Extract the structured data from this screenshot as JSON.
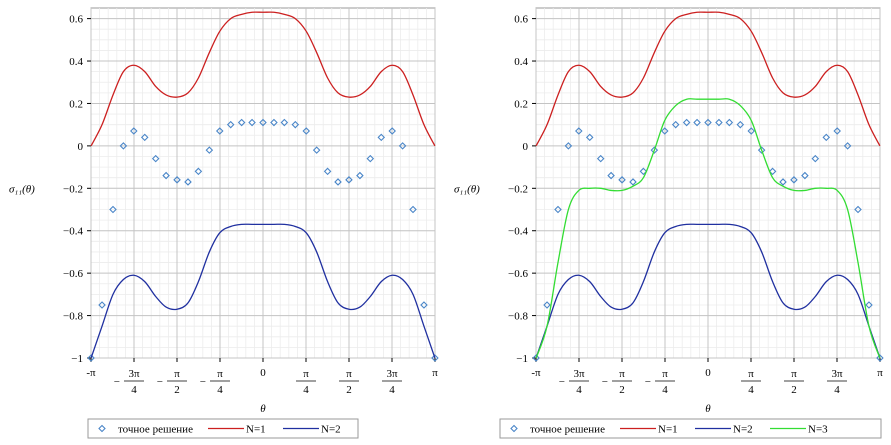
{
  "chart_data": [
    {
      "type": "line",
      "xlabel": "θ",
      "ylabel": "σ₁₁(θ)",
      "xlim": [
        -3.14159,
        3.14159
      ],
      "ylim": [
        -1,
        0.65
      ],
      "grid": true,
      "legend_position": "bottom",
      "x_ticks": [
        "-π",
        "-3π/4",
        "-π/2",
        "-π/4",
        "0",
        "π/4",
        "π/2",
        "3π/4",
        "π"
      ],
      "y_ticks": [
        "0.6",
        "0.4",
        "0.2",
        "0",
        "−0.2",
        "−0.4",
        "−0.6",
        "−0.8",
        "−1"
      ],
      "series": [
        {
          "name": "точное решение",
          "style": "markers",
          "color": "#4a86c8",
          "x": [
            -3.14,
            -2.94,
            -2.74,
            -2.55,
            -2.36,
            -2.16,
            -1.96,
            -1.77,
            -1.57,
            -1.37,
            -1.18,
            -0.98,
            -0.79,
            -0.59,
            -0.39,
            -0.2,
            0,
            0.2,
            0.39,
            0.59,
            0.79,
            0.98,
            1.18,
            1.37,
            1.57,
            1.77,
            1.96,
            2.16,
            2.36,
            2.55,
            2.74,
            2.94,
            3.14
          ],
          "y": [
            -1.0,
            -0.75,
            -0.3,
            0.0,
            0.07,
            0.04,
            -0.06,
            -0.14,
            -0.16,
            -0.17,
            -0.12,
            -0.02,
            0.07,
            0.1,
            0.11,
            0.11,
            0.11,
            0.11,
            0.11,
            0.1,
            0.07,
            -0.02,
            -0.12,
            -0.17,
            -0.16,
            -0.14,
            -0.06,
            0.04,
            0.07,
            0.0,
            -0.3,
            -0.75,
            -1.0
          ]
        },
        {
          "name": "N=1",
          "style": "line",
          "color": "#cc2020",
          "x": [
            -3.14,
            -2.94,
            -2.74,
            -2.55,
            -2.36,
            -2.16,
            -1.96,
            -1.77,
            -1.57,
            -1.37,
            -1.18,
            -0.98,
            -0.79,
            -0.59,
            -0.39,
            -0.2,
            0,
            0.2,
            0.39,
            0.59,
            0.79,
            0.98,
            1.18,
            1.37,
            1.57,
            1.77,
            1.96,
            2.16,
            2.36,
            2.55,
            2.74,
            2.94,
            3.14
          ],
          "y": [
            0.0,
            0.1,
            0.24,
            0.35,
            0.38,
            0.35,
            0.28,
            0.24,
            0.23,
            0.25,
            0.32,
            0.44,
            0.54,
            0.6,
            0.62,
            0.63,
            0.63,
            0.63,
            0.62,
            0.6,
            0.54,
            0.44,
            0.32,
            0.25,
            0.23,
            0.24,
            0.28,
            0.35,
            0.38,
            0.35,
            0.24,
            0.1,
            0.0
          ]
        },
        {
          "name": "N=2",
          "style": "line",
          "color": "#2030a0",
          "x": [
            -3.14,
            -2.94,
            -2.74,
            -2.55,
            -2.36,
            -2.16,
            -1.96,
            -1.77,
            -1.57,
            -1.37,
            -1.18,
            -0.98,
            -0.79,
            -0.59,
            -0.39,
            -0.2,
            0,
            0.2,
            0.39,
            0.59,
            0.79,
            0.98,
            1.18,
            1.37,
            1.57,
            1.77,
            1.96,
            2.16,
            2.36,
            2.55,
            2.74,
            2.94,
            3.14
          ],
          "y": [
            -1.0,
            -0.85,
            -0.7,
            -0.63,
            -0.61,
            -0.64,
            -0.71,
            -0.76,
            -0.77,
            -0.74,
            -0.64,
            -0.5,
            -0.41,
            -0.38,
            -0.37,
            -0.37,
            -0.37,
            -0.37,
            -0.37,
            -0.38,
            -0.41,
            -0.5,
            -0.64,
            -0.74,
            -0.77,
            -0.76,
            -0.71,
            -0.64,
            -0.61,
            -0.63,
            -0.7,
            -0.85,
            -1.0
          ]
        }
      ]
    },
    {
      "type": "line",
      "xlabel": "θ",
      "ylabel": "σ₁₁(θ)",
      "xlim": [
        -3.14159,
        3.14159
      ],
      "ylim": [
        -1,
        0.65
      ],
      "grid": true,
      "legend_position": "bottom",
      "x_ticks": [
        "-π",
        "-3π/4",
        "-π/2",
        "-π/4",
        "0",
        "π/4",
        "π/2",
        "3π/4",
        "π"
      ],
      "y_ticks": [
        "0.6",
        "0.4",
        "0.2",
        "0",
        "−0.2",
        "−0.4",
        "−0.6",
        "−0.8",
        "−1"
      ],
      "series": [
        {
          "name": "точное решение",
          "style": "markers",
          "color": "#4a86c8",
          "x": [
            -3.14,
            -2.94,
            -2.74,
            -2.55,
            -2.36,
            -2.16,
            -1.96,
            -1.77,
            -1.57,
            -1.37,
            -1.18,
            -0.98,
            -0.79,
            -0.59,
            -0.39,
            -0.2,
            0,
            0.2,
            0.39,
            0.59,
            0.79,
            0.98,
            1.18,
            1.37,
            1.57,
            1.77,
            1.96,
            2.16,
            2.36,
            2.55,
            2.74,
            2.94,
            3.14
          ],
          "y": [
            -1.0,
            -0.75,
            -0.3,
            0.0,
            0.07,
            0.04,
            -0.06,
            -0.14,
            -0.16,
            -0.17,
            -0.12,
            -0.02,
            0.07,
            0.1,
            0.11,
            0.11,
            0.11,
            0.11,
            0.11,
            0.1,
            0.07,
            -0.02,
            -0.12,
            -0.17,
            -0.16,
            -0.14,
            -0.06,
            0.04,
            0.07,
            0.0,
            -0.3,
            -0.75,
            -1.0
          ]
        },
        {
          "name": "N=1",
          "style": "line",
          "color": "#cc2020",
          "x": [
            -3.14,
            -2.94,
            -2.74,
            -2.55,
            -2.36,
            -2.16,
            -1.96,
            -1.77,
            -1.57,
            -1.37,
            -1.18,
            -0.98,
            -0.79,
            -0.59,
            -0.39,
            -0.2,
            0,
            0.2,
            0.39,
            0.59,
            0.79,
            0.98,
            1.18,
            1.37,
            1.57,
            1.77,
            1.96,
            2.16,
            2.36,
            2.55,
            2.74,
            2.94,
            3.14
          ],
          "y": [
            0.0,
            0.1,
            0.24,
            0.35,
            0.38,
            0.35,
            0.28,
            0.24,
            0.23,
            0.25,
            0.32,
            0.44,
            0.54,
            0.6,
            0.62,
            0.63,
            0.63,
            0.63,
            0.62,
            0.6,
            0.54,
            0.44,
            0.32,
            0.25,
            0.23,
            0.24,
            0.28,
            0.35,
            0.38,
            0.35,
            0.24,
            0.1,
            0.0
          ]
        },
        {
          "name": "N=2",
          "style": "line",
          "color": "#2030a0",
          "x": [
            -3.14,
            -2.94,
            -2.74,
            -2.55,
            -2.36,
            -2.16,
            -1.96,
            -1.77,
            -1.57,
            -1.37,
            -1.18,
            -0.98,
            -0.79,
            -0.59,
            -0.39,
            -0.2,
            0,
            0.2,
            0.39,
            0.59,
            0.79,
            0.98,
            1.18,
            1.37,
            1.57,
            1.77,
            1.96,
            2.16,
            2.36,
            2.55,
            2.74,
            2.94,
            3.14
          ],
          "y": [
            -1.0,
            -0.85,
            -0.7,
            -0.63,
            -0.61,
            -0.64,
            -0.71,
            -0.76,
            -0.77,
            -0.74,
            -0.64,
            -0.5,
            -0.41,
            -0.38,
            -0.37,
            -0.37,
            -0.37,
            -0.37,
            -0.37,
            -0.38,
            -0.41,
            -0.5,
            -0.64,
            -0.74,
            -0.77,
            -0.76,
            -0.71,
            -0.64,
            -0.61,
            -0.63,
            -0.7,
            -0.85,
            -1.0
          ]
        },
        {
          "name": "N=3",
          "style": "line",
          "color": "#33dd33",
          "x": [
            -3.14,
            -2.94,
            -2.74,
            -2.55,
            -2.36,
            -2.16,
            -1.96,
            -1.77,
            -1.57,
            -1.37,
            -1.18,
            -0.98,
            -0.79,
            -0.59,
            -0.39,
            -0.2,
            0,
            0.2,
            0.39,
            0.59,
            0.79,
            0.98,
            1.18,
            1.37,
            1.57,
            1.77,
            1.96,
            2.16,
            2.36,
            2.55,
            2.74,
            2.94,
            3.14
          ],
          "y": [
            -1.0,
            -0.85,
            -0.55,
            -0.3,
            -0.21,
            -0.2,
            -0.2,
            -0.21,
            -0.21,
            -0.19,
            -0.15,
            -0.02,
            0.12,
            0.19,
            0.22,
            0.22,
            0.22,
            0.22,
            0.22,
            0.19,
            0.12,
            -0.02,
            -0.15,
            -0.19,
            -0.21,
            -0.21,
            -0.2,
            -0.2,
            -0.21,
            -0.3,
            -0.55,
            -0.85,
            -1.0
          ]
        }
      ]
    }
  ]
}
